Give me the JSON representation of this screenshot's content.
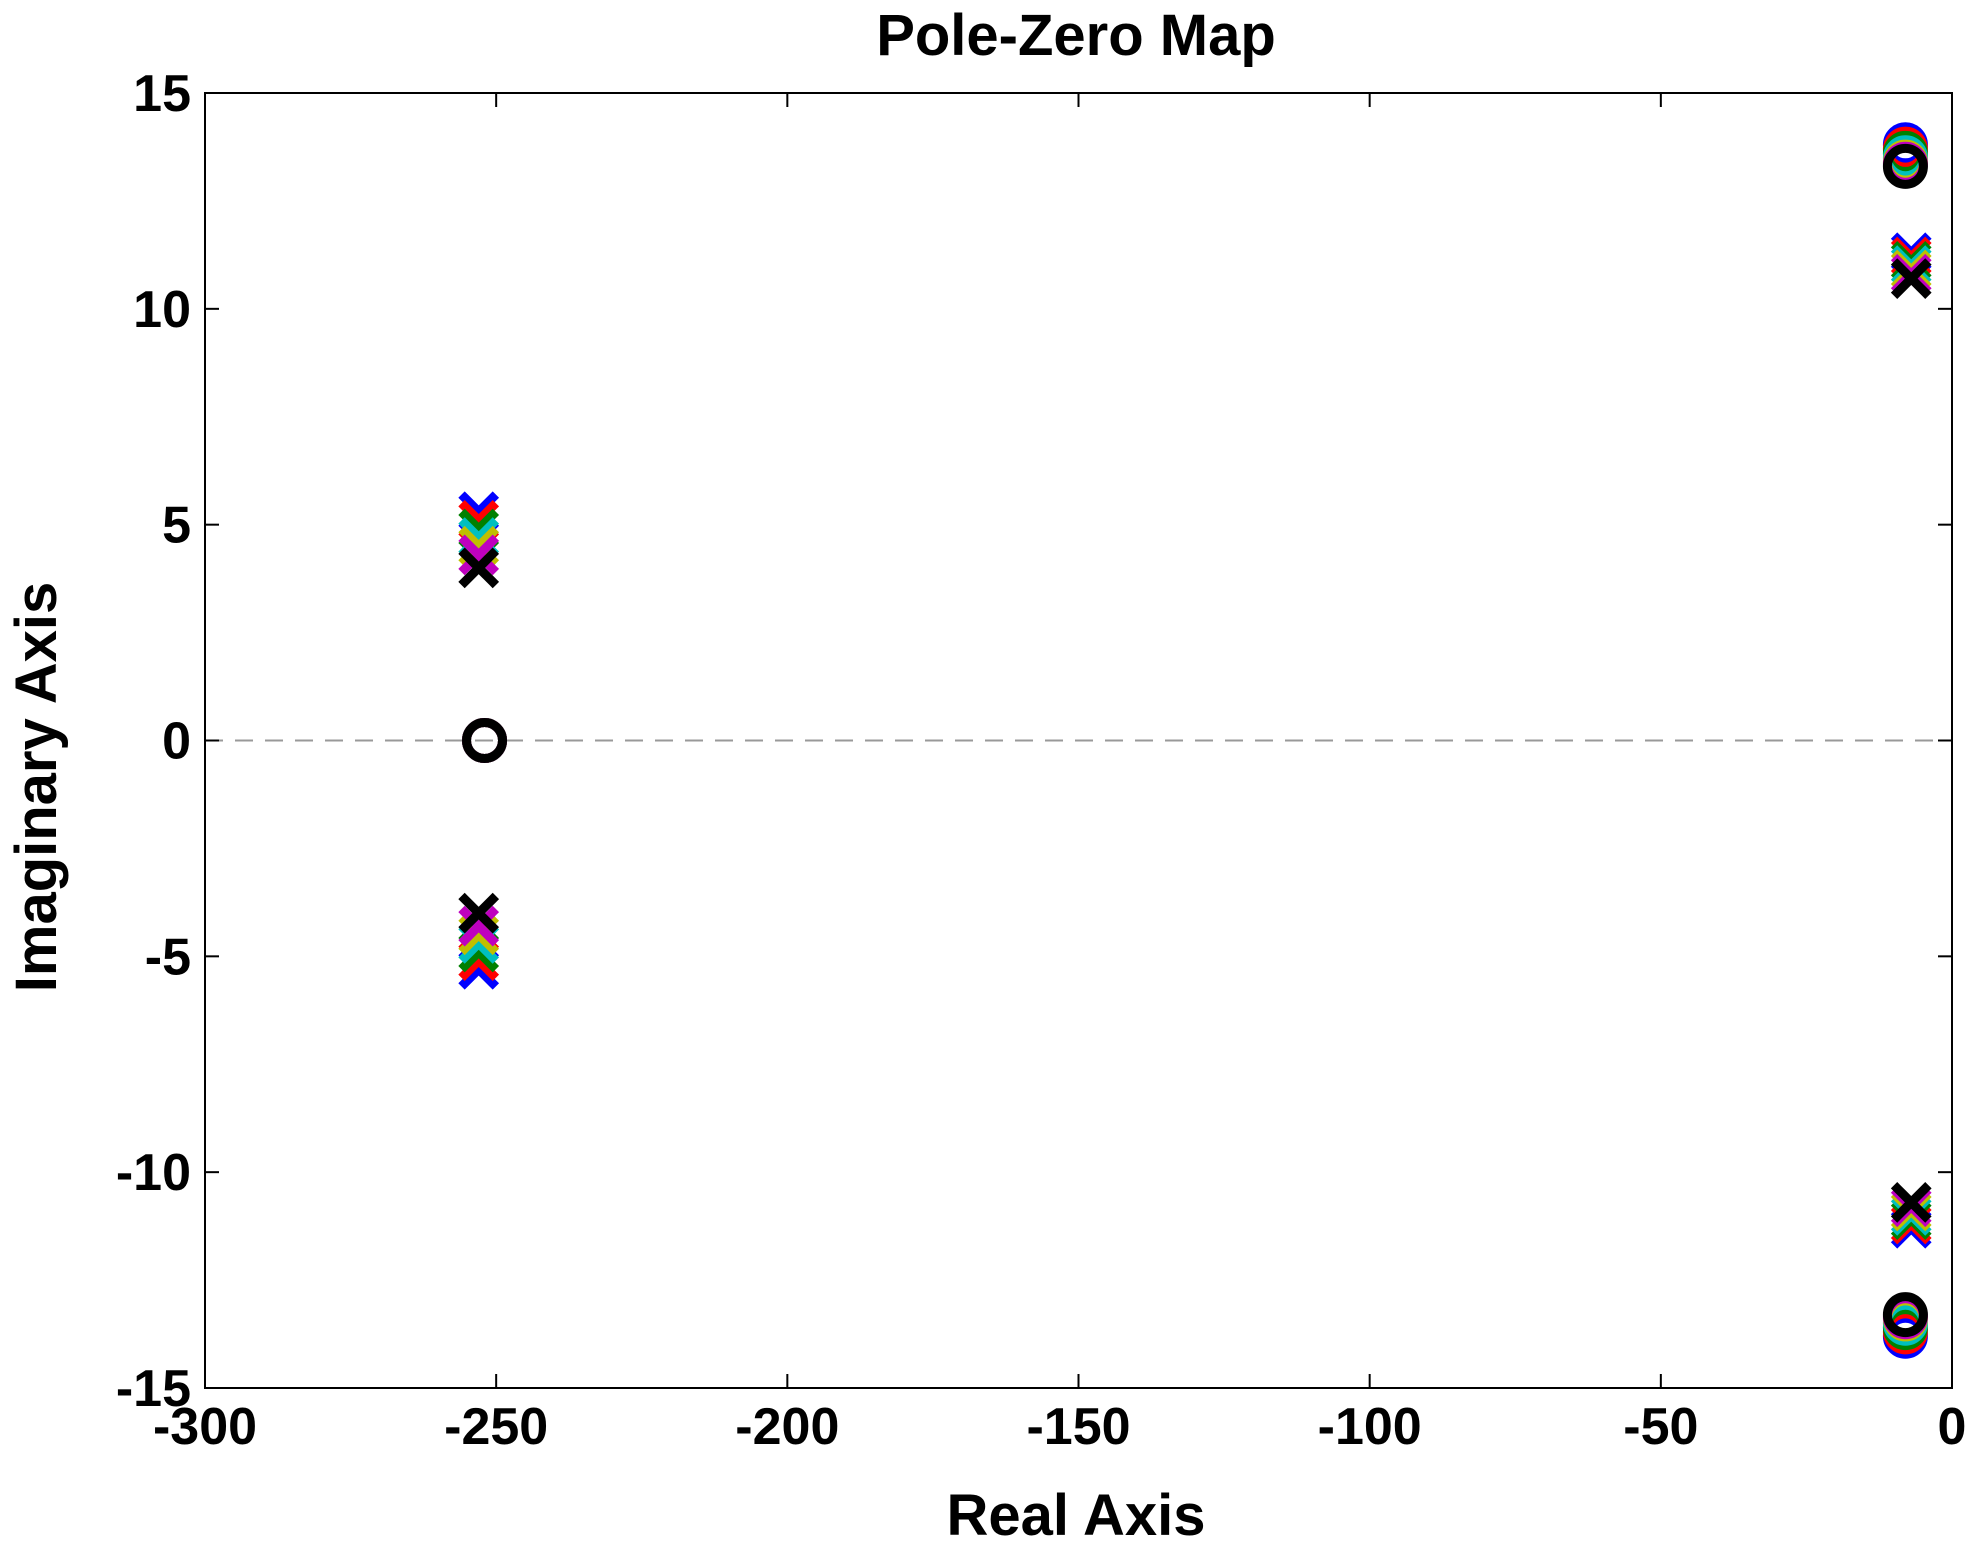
{
  "chart_data": {
    "type": "scatter",
    "title": "Pole-Zero Map",
    "xlabel": "Real Axis",
    "ylabel": "Imaginary Axis",
    "xlim": [
      -300,
      0
    ],
    "ylim": [
      -15,
      15
    ],
    "x_ticks": [
      -300,
      -250,
      -200,
      -150,
      -100,
      -50,
      0
    ],
    "y_ticks": [
      15,
      10,
      5,
      0,
      -5,
      -10,
      -15
    ],
    "x_tick_labels": [
      "-300",
      "-250",
      "-200",
      "-150",
      "-100",
      "-50",
      "0"
    ],
    "y_tick_labels": [
      "15",
      "10",
      "5",
      "0",
      "-5",
      "-10",
      "-15"
    ],
    "grid": false,
    "zero_line": "dashed",
    "marker_legend": {
      "pole": "x",
      "zero": "o"
    },
    "series": [
      {
        "color": "#0000ff",
        "poles": [
          [
            -253,
            5.3
          ],
          [
            -253,
            -5.3
          ],
          [
            -7,
            11.3
          ],
          [
            -7,
            -11.3
          ]
        ],
        "zeros": [
          [
            -252,
            0
          ],
          [
            -8,
            13.8
          ],
          [
            -8,
            -13.8
          ]
        ]
      },
      {
        "color": "#ff0000",
        "poles": [
          [
            -253,
            5.1
          ],
          [
            -253,
            -5.1
          ],
          [
            -7,
            11.2
          ],
          [
            -7,
            -11.2
          ]
        ],
        "zeros": [
          [
            -252,
            0
          ],
          [
            -8,
            13.7
          ],
          [
            -8,
            -13.7
          ]
        ]
      },
      {
        "color": "#008000",
        "poles": [
          [
            -253,
            4.9
          ],
          [
            -253,
            -4.9
          ],
          [
            -7,
            11.1
          ],
          [
            -7,
            -11.1
          ]
        ],
        "zeros": [
          [
            -252,
            0
          ],
          [
            -8,
            13.6
          ],
          [
            -8,
            -13.6
          ]
        ]
      },
      {
        "color": "#00bfbf",
        "poles": [
          [
            -253,
            4.7
          ],
          [
            -253,
            -4.7
          ],
          [
            -7,
            11.0
          ],
          [
            -7,
            -11.0
          ]
        ],
        "zeros": [
          [
            -252,
            0
          ],
          [
            -8,
            13.5
          ],
          [
            -8,
            -13.5
          ]
        ]
      },
      {
        "color": "#bfbf00",
        "poles": [
          [
            -253,
            4.5
          ],
          [
            -253,
            -4.5
          ],
          [
            -7,
            10.9
          ],
          [
            -7,
            -10.9
          ]
        ],
        "zeros": [
          [
            -252,
            0
          ],
          [
            -8,
            13.4
          ],
          [
            -8,
            -13.4
          ]
        ]
      },
      {
        "color": "#bf00bf",
        "poles": [
          [
            -253,
            4.3
          ],
          [
            -253,
            -4.3
          ],
          [
            -7,
            10.8
          ],
          [
            -7,
            -10.8
          ]
        ],
        "zeros": [
          [
            -252,
            0
          ],
          [
            -8,
            13.35
          ],
          [
            -8,
            -13.35
          ]
        ]
      },
      {
        "color": "#000000",
        "poles": [
          [
            -253,
            4.0
          ],
          [
            -253,
            -4.0
          ],
          [
            -7,
            10.7
          ],
          [
            -7,
            -10.7
          ]
        ],
        "zeros": [
          [
            -252,
            0
          ],
          [
            -8,
            13.3
          ],
          [
            -8,
            -13.3
          ]
        ]
      }
    ]
  }
}
